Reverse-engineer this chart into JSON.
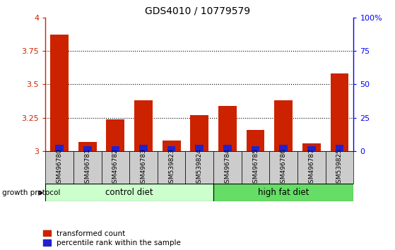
{
  "title": "GDS4010 / 10779579",
  "samples": [
    "GSM496780",
    "GSM496781",
    "GSM496782",
    "GSM496783",
    "GSM539823",
    "GSM539824",
    "GSM496784",
    "GSM496785",
    "GSM496786",
    "GSM496787",
    "GSM539825"
  ],
  "red_values": [
    3.87,
    3.07,
    3.24,
    3.38,
    3.08,
    3.27,
    3.34,
    3.16,
    3.38,
    3.06,
    3.58
  ],
  "blue_values": [
    3.05,
    3.04,
    3.04,
    3.05,
    3.04,
    3.05,
    3.05,
    3.04,
    3.05,
    3.04,
    3.05
  ],
  "ylim": [
    3.0,
    4.0
  ],
  "yticks": [
    3.0,
    3.25,
    3.5,
    3.75,
    4.0
  ],
  "ytick_labels": [
    "3",
    "3.25",
    "3.5",
    "3.75",
    "4"
  ],
  "right_yticks": [
    0,
    25,
    50,
    75,
    100
  ],
  "right_ytick_labels": [
    "0",
    "25",
    "50",
    "75",
    "100%"
  ],
  "control_label": "control diet",
  "high_fat_label": "high fat diet",
  "growth_protocol_label": "growth protocol",
  "legend_red": "transformed count",
  "legend_blue": "percentile rank within the sample",
  "bar_width": 0.65,
  "red_color": "#CC2200",
  "blue_color": "#2222CC",
  "control_bg": "#CCFFCC",
  "highfat_bg": "#66DD66",
  "sample_bg": "#CCCCCC",
  "bar_base": 3.0,
  "n_control": 6,
  "n_highfat": 5
}
